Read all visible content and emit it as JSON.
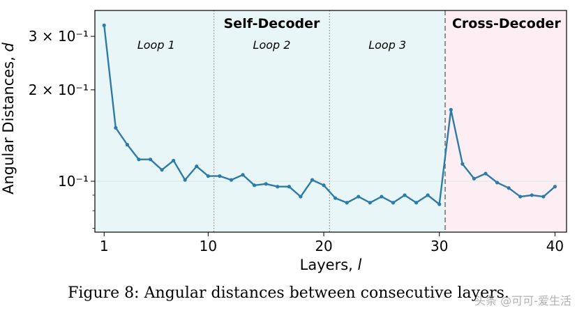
{
  "chart_data": {
    "type": "line",
    "xlabel_text": "Layers, ",
    "xlabel_var": "l",
    "ylabel_text": "Angular Distances, ",
    "ylabel_var": "d",
    "xlim": [
      0.2,
      41.0
    ],
    "ylim": [
      0.068,
      0.365
    ],
    "yscale": "log",
    "x_ticks": [
      1,
      10,
      20,
      30,
      40
    ],
    "y_ticks": [
      {
        "value": 0.1,
        "label": "10⁻¹"
      },
      {
        "value": 0.2,
        "label": "2 × 10⁻¹"
      },
      {
        "value": 0.3,
        "label": "3 × 10⁻¹"
      }
    ],
    "y_minor_ticks": [
      0.07,
      0.08,
      0.09,
      0.4
    ],
    "regions": [
      {
        "name": "Self-Decoder",
        "x_start": 0.2,
        "x_end": 30.5,
        "color": "#e8f6f7"
      },
      {
        "name": "Cross-Decoder",
        "x_start": 30.5,
        "x_end": 41.0,
        "color": "#fdeef3"
      }
    ],
    "loop_dividers": [
      10.5,
      20.5
    ],
    "region_divider": 30.5,
    "loops": [
      {
        "label": "Loop 1",
        "x": 5.5
      },
      {
        "label": "Loop 2",
        "x": 15.5
      },
      {
        "label": "Loop 3",
        "x": 25.5
      }
    ],
    "region_labels": [
      {
        "label": "Self-Decoder",
        "x": 15.5
      },
      {
        "label": "Cross-Decoder",
        "x": 35.8
      }
    ],
    "series": [
      {
        "name": "angular distance",
        "color": "#2e7ba8",
        "x": [
          1,
          2,
          3,
          4,
          5,
          6,
          7,
          8,
          9,
          10,
          11,
          12,
          13,
          14,
          15,
          16,
          17,
          18,
          19,
          20,
          21,
          22,
          23,
          24,
          25,
          26,
          27,
          28,
          29,
          30,
          31,
          32,
          33,
          34,
          35,
          36,
          37,
          38,
          39,
          40
        ],
        "values": [
          0.326,
          0.15,
          0.132,
          0.118,
          0.118,
          0.109,
          0.117,
          0.101,
          0.112,
          0.104,
          0.104,
          0.101,
          0.105,
          0.097,
          0.098,
          0.096,
          0.096,
          0.089,
          0.101,
          0.097,
          0.088,
          0.085,
          0.089,
          0.085,
          0.089,
          0.085,
          0.09,
          0.085,
          0.09,
          0.084,
          0.172,
          0.114,
          0.102,
          0.106,
          0.099,
          0.095,
          0.089,
          0.09,
          0.089,
          0.096
        ]
      }
    ]
  },
  "caption": "Figure 8: Angular distances between consecutive layers.",
  "watermark": "头条 @可可-爱生活"
}
